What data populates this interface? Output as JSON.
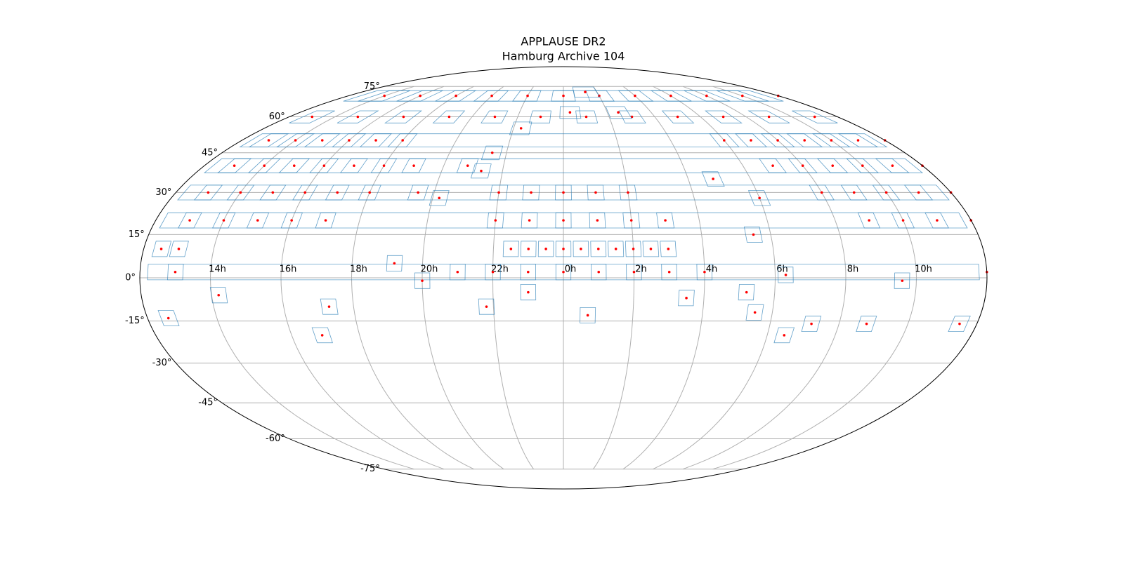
{
  "chart_data": {
    "type": "mollweide-scatter",
    "title": "APPLAUSE DR2",
    "subtitle": "Hamburg Archive 104",
    "xticks": [
      {
        "value": 14,
        "label": "14h"
      },
      {
        "value": 16,
        "label": "16h"
      },
      {
        "value": 18,
        "label": "18h"
      },
      {
        "value": 20,
        "label": "20h"
      },
      {
        "value": 22,
        "label": "22h"
      },
      {
        "value": 0,
        "label": "0h"
      },
      {
        "value": 2,
        "label": "2h"
      },
      {
        "value": 4,
        "label": "4h"
      },
      {
        "value": 6,
        "label": "6h"
      },
      {
        "value": 8,
        "label": "8h"
      },
      {
        "value": 10,
        "label": "10h"
      }
    ],
    "yticks": [
      {
        "value": 75,
        "label": "75°"
      },
      {
        "value": 60,
        "label": "60°"
      },
      {
        "value": 45,
        "label": "45°"
      },
      {
        "value": 30,
        "label": "30°"
      },
      {
        "value": 15,
        "label": "15°"
      },
      {
        "value": 0,
        "label": "0°"
      },
      {
        "value": -15,
        "label": "-15°"
      },
      {
        "value": -30,
        "label": "-30°"
      },
      {
        "value": -45,
        "label": "-45°"
      },
      {
        "value": -60,
        "label": "-60°"
      },
      {
        "value": -75,
        "label": "-75°"
      }
    ],
    "grid": true,
    "outline_color": "#1f77b4",
    "center_color": "#ff0000",
    "x": [
      0,
      2,
      4,
      6,
      8,
      10,
      12,
      14,
      16,
      18,
      20,
      22,
      1,
      3,
      5,
      7,
      9,
      11,
      13,
      15,
      17,
      19,
      21,
      23,
      6,
      7,
      8,
      9,
      10,
      11,
      12,
      13,
      14,
      15,
      16,
      17,
      18,
      7,
      8,
      9,
      10,
      11,
      12,
      13,
      14,
      15,
      16,
      17,
      18,
      19,
      8,
      9,
      10,
      11,
      12,
      13,
      14,
      15,
      16,
      17,
      18,
      0,
      1,
      2,
      23,
      22,
      9,
      10,
      11,
      12,
      13,
      14,
      15,
      16,
      17,
      22,
      23,
      0,
      1,
      2,
      3,
      22.5,
      23,
      23.5,
      0,
      0.5,
      1,
      1.5,
      2,
      2.5,
      3,
      12.5,
      13,
      21,
      22,
      23,
      0,
      1,
      2,
      3,
      4,
      12,
      13,
      19.2,
      20,
      17.3,
      16.9,
      21.8,
      23,
      0.7,
      3.5,
      5.2,
      5.5,
      6.5,
      7.2,
      6.3,
      8.8,
      9.6,
      11.5,
      14.2,
      12.6,
      20.8,
      21.5,
      22.3,
      0.3,
      1.3,
      2.5,
      5.5,
      6,
      4.8,
      19.5,
      20.2,
      21.3
    ],
    "y": [
      70,
      70,
      70,
      70,
      70,
      70,
      70,
      70,
      70,
      70,
      70,
      70,
      60,
      60,
      60,
      60,
      60,
      60,
      60,
      60,
      60,
      60,
      60,
      60,
      50,
      50,
      50,
      50,
      50,
      50,
      50,
      50,
      50,
      50,
      50,
      50,
      50,
      40,
      40,
      40,
      40,
      40,
      40,
      40,
      40,
      40,
      40,
      40,
      40,
      40,
      30,
      30,
      30,
      30,
      30,
      30,
      30,
      30,
      30,
      30,
      30,
      30,
      30,
      30,
      30,
      30,
      20,
      20,
      20,
      20,
      20,
      20,
      20,
      20,
      20,
      20,
      20,
      20,
      20,
      20,
      20,
      10,
      10,
      10,
      10,
      10,
      10,
      10,
      10,
      10,
      10,
      10,
      10,
      2,
      2,
      2,
      2,
      2,
      2,
      2,
      2,
      2,
      2,
      5,
      -1,
      -10,
      -20,
      -10,
      -5,
      -13,
      -7,
      -5,
      -12,
      -20,
      -16,
      1,
      -16,
      -1,
      -16,
      -6,
      -14,
      40,
      45,
      55,
      62,
      72,
      62,
      15,
      28,
      35,
      30,
      28,
      38
    ]
  }
}
